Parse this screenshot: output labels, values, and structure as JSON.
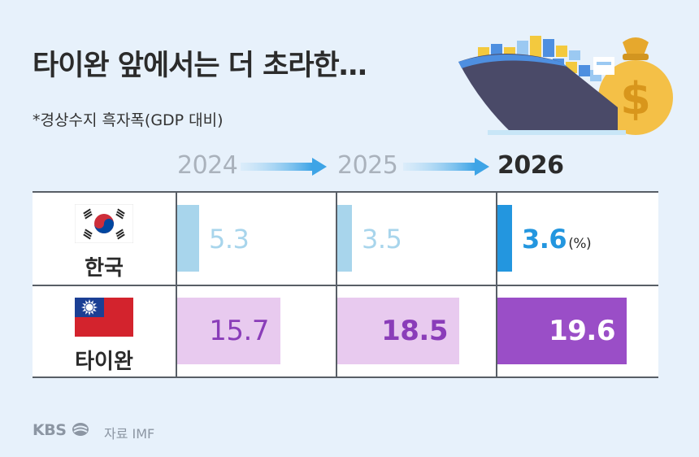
{
  "title": "타이완 앞에서는 더 초라한…",
  "subtitle": "*경상수지 흑자폭(GDP 대비)",
  "source_label": "자료 IMF",
  "logo_text": "KBS",
  "unit_label": "(%)",
  "colors": {
    "korea_past": "#a8d5ec",
    "korea_current": "#2396df",
    "taiwan_past": "#e8caef",
    "taiwan_current": "#9a4ec7",
    "past_text_korea": "#a8d5ec",
    "taiwan_text": "#8a3db9"
  },
  "chart_data": {
    "type": "table",
    "categories": [
      "2024",
      "2025",
      "2026"
    ],
    "series": [
      {
        "name": "한국",
        "values": [
          5.3,
          3.5,
          3.6
        ]
      },
      {
        "name": "타이완",
        "values": [
          15.7,
          18.5,
          19.6
        ]
      }
    ],
    "labels": {
      "korea": [
        "5.3",
        "3.5",
        "3.6"
      ],
      "taiwan": [
        "15.7",
        "18.5",
        "19.6"
      ]
    },
    "highlight_category": "2026",
    "icons": [
      "korea-flag-icon",
      "taiwan-flag-icon",
      "cargo-ship-icon",
      "money-bag-icon",
      "kbs-logo-icon"
    ]
  }
}
